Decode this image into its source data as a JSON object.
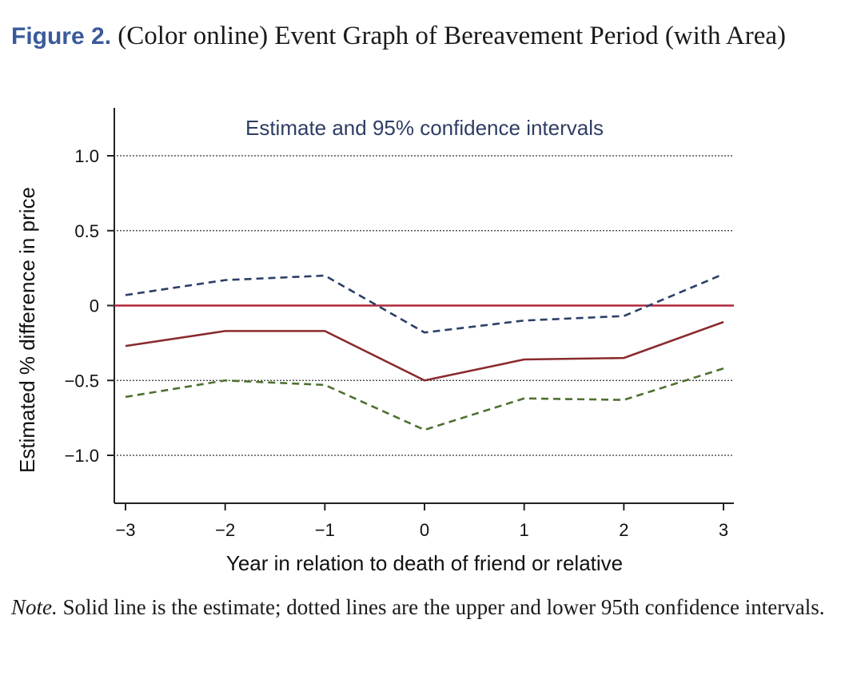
{
  "caption": {
    "label": "Figure 2.",
    "text": "(Color online) Event Graph of Bereavement Period (with Area)"
  },
  "note": {
    "label": "Note.",
    "text": "Solid line is the estimate; dotted lines are the upper and lower 95th confidence intervals."
  },
  "chart_data": {
    "type": "line",
    "title": "Estimate and 95% confidence intervals",
    "xlabel": "Year in relation to death of friend or relative",
    "ylabel": "Estimated % difference in price",
    "x": [
      -3,
      -2,
      -1,
      0,
      1,
      2,
      3
    ],
    "x_tick_labels": [
      "−3",
      "−2",
      "−1",
      "0",
      "1",
      "2",
      "3"
    ],
    "y_ticks": [
      1.0,
      0.5,
      0,
      -0.5,
      -1.0
    ],
    "y_tick_labels": [
      "1.0",
      "0.5",
      "0",
      "−0.5",
      "−1.0"
    ],
    "ylim": [
      -1.3,
      1.3
    ],
    "xlim": [
      -3.1,
      3.1
    ],
    "grid": "horizontal dotted",
    "reference_line": {
      "y": 0,
      "color": "#b0283c"
    },
    "series": [
      {
        "role": "upper",
        "style": "dashed",
        "color": "#2b3f66",
        "values": [
          0.07,
          0.17,
          0.2,
          -0.18,
          -0.1,
          -0.07,
          0.21
        ]
      },
      {
        "role": "estimate",
        "style": "solid",
        "color": "#8a2a2e",
        "values": [
          -0.27,
          -0.17,
          -0.17,
          -0.5,
          -0.36,
          -0.35,
          -0.11
        ]
      },
      {
        "role": "lower",
        "style": "dashed",
        "color": "#4f7031",
        "values": [
          -0.61,
          -0.5,
          -0.53,
          -0.83,
          -0.62,
          -0.63,
          -0.42
        ]
      }
    ]
  }
}
